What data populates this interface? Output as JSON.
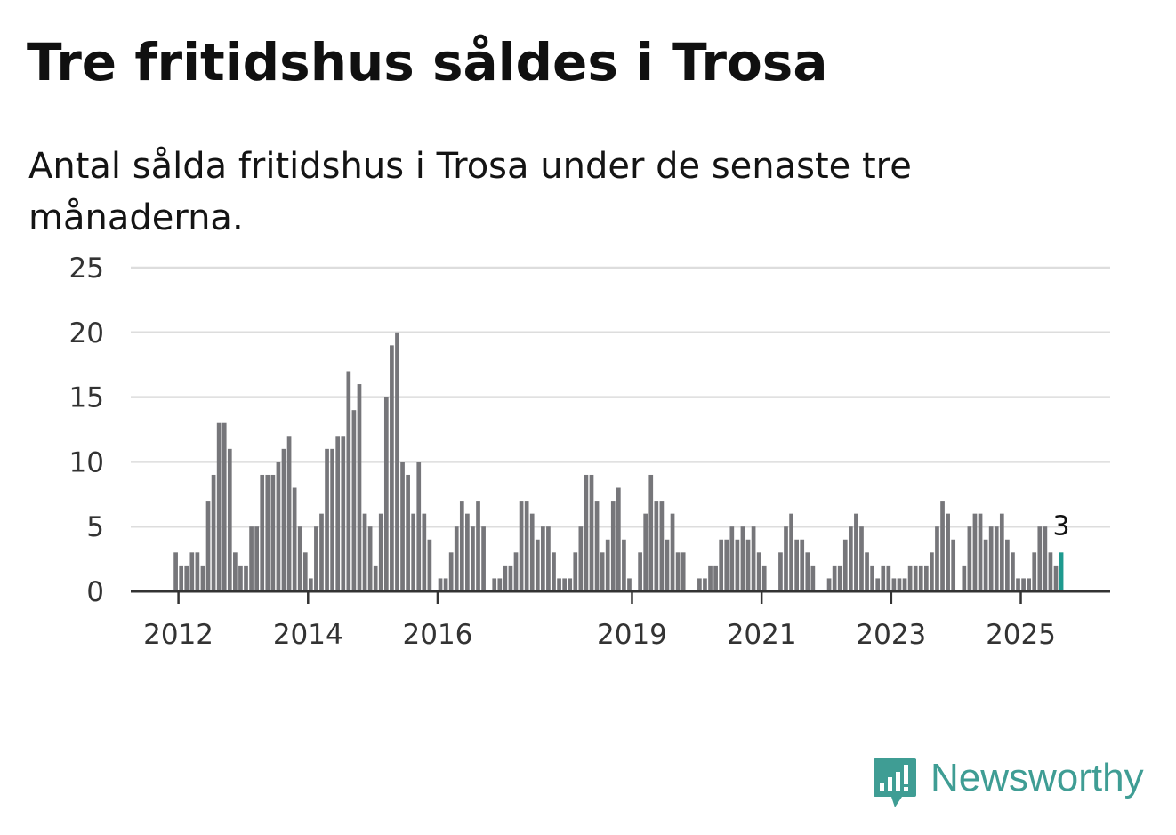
{
  "title": "Tre fritidshus såldes i Trosa",
  "subtitle": "Antal sålda fritidshus i Trosa under de senaste tre månaderna.",
  "logo": {
    "text": "Newsworthy",
    "icon": "bar-chart-icon"
  },
  "colors": {
    "bar": "#76767a",
    "highlight": "#1e9a8f",
    "grid": "#dddddd",
    "axis": "#333333",
    "logo": "#3f9d94"
  },
  "chart_data": {
    "type": "bar",
    "title": "Tre fritidshus såldes i Trosa",
    "xlabel": "",
    "ylabel": "",
    "ylim": [
      0,
      25
    ],
    "y_ticks": [
      0,
      5,
      10,
      15,
      20,
      25
    ],
    "grid": true,
    "x_tick_labels": [
      {
        "label": "2012",
        "month_index": 0
      },
      {
        "label": "2014",
        "month_index": 24
      },
      {
        "label": "2016",
        "month_index": 48
      },
      {
        "label": "2019",
        "month_index": 84
      },
      {
        "label": "2021",
        "month_index": 108
      },
      {
        "label": "2023",
        "month_index": 132
      },
      {
        "label": "2025",
        "month_index": 156
      }
    ],
    "series": [
      {
        "name": "Antal sålda fritidshus",
        "start": "2012-01",
        "values": [
          3,
          2,
          2,
          3,
          3,
          2,
          7,
          9,
          13,
          13,
          11,
          3,
          2,
          2,
          5,
          5,
          9,
          9,
          9,
          10,
          11,
          12,
          8,
          5,
          3,
          1,
          5,
          6,
          11,
          11,
          12,
          12,
          17,
          14,
          16,
          6,
          5,
          2,
          6,
          15,
          19,
          20,
          10,
          9,
          6,
          10,
          6,
          4,
          0,
          1,
          1,
          3,
          5,
          7,
          6,
          5,
          7,
          5,
          0,
          1,
          1,
          2,
          2,
          3,
          7,
          7,
          6,
          4,
          5,
          5,
          3,
          1,
          1,
          1,
          3,
          5,
          9,
          9,
          7,
          3,
          4,
          7,
          8,
          4,
          1,
          0,
          3,
          6,
          9,
          7,
          7,
          4,
          6,
          3,
          3,
          0,
          0,
          1,
          1,
          2,
          2,
          4,
          4,
          5,
          4,
          5,
          4,
          5,
          3,
          2,
          0,
          0,
          3,
          5,
          6,
          4,
          4,
          3,
          2,
          0,
          0,
          1,
          2,
          2,
          4,
          5,
          6,
          5,
          3,
          2,
          1,
          2,
          2,
          1,
          1,
          1,
          2,
          2,
          2,
          2,
          3,
          5,
          7,
          6,
          4,
          0,
          2,
          5,
          6,
          6,
          4,
          5,
          5,
          6,
          4,
          3,
          1,
          1,
          1,
          3,
          5,
          5,
          3,
          2,
          3
        ]
      }
    ],
    "highlight": {
      "index": 164,
      "label": "3"
    }
  }
}
